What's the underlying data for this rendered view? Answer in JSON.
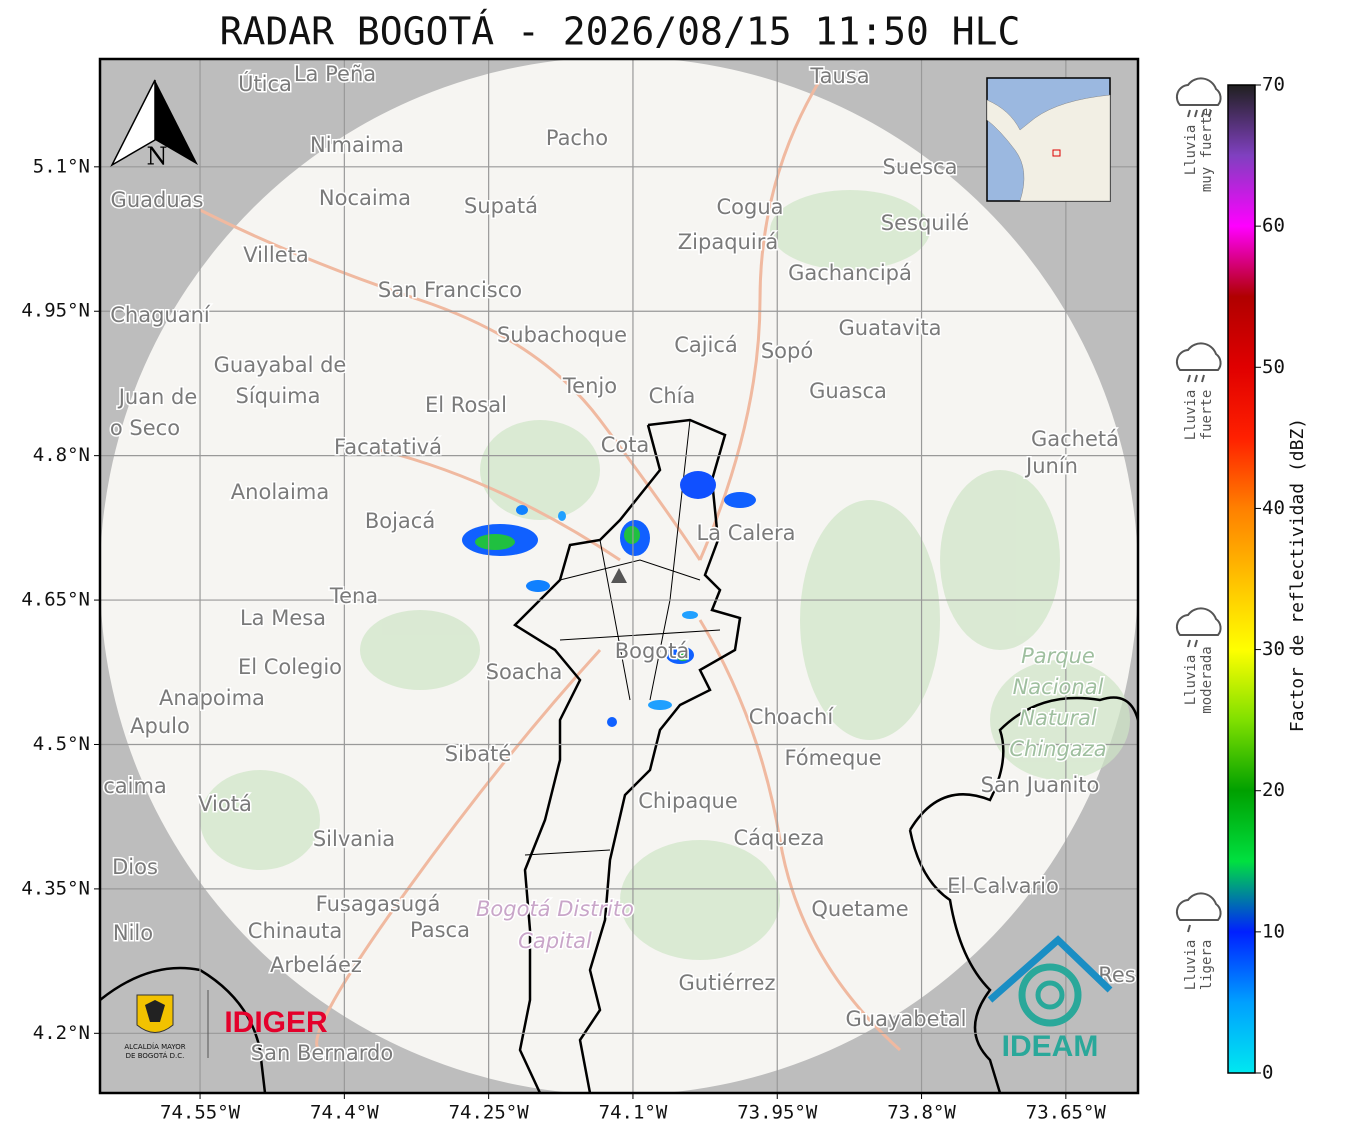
{
  "title": "RADAR BOGOTÁ - 2026/08/15 11:50 HLC",
  "map": {
    "xlim": [
      -74.654,
      -73.575
    ],
    "ylim": [
      4.138,
      5.212
    ],
    "xticks": [
      {
        "value": -74.55,
        "label": "74.55°W"
      },
      {
        "value": -74.4,
        "label": "74.4°W"
      },
      {
        "value": -74.25,
        "label": "74.25°W"
      },
      {
        "value": -74.1,
        "label": "74.1°W"
      },
      {
        "value": -73.95,
        "label": "73.95°W"
      },
      {
        "value": -73.8,
        "label": "73.8°W"
      },
      {
        "value": -73.65,
        "label": "73.65°W"
      }
    ],
    "yticks": [
      {
        "value": 5.1,
        "label": "5.1°N"
      },
      {
        "value": 4.95,
        "label": "4.95°N"
      },
      {
        "value": 4.8,
        "label": "4.8°N"
      },
      {
        "value": 4.65,
        "label": "4.65°N"
      },
      {
        "value": 4.5,
        "label": "4.5°N"
      },
      {
        "value": 4.35,
        "label": "4.35°N"
      },
      {
        "value": 4.2,
        "label": "4.2°N"
      }
    ],
    "grid": true,
    "north": "N",
    "places": [
      "La Peña",
      "Útica",
      "Tausa",
      "Nimaima",
      "Pacho",
      "Guaduas",
      "Nocaima",
      "Supatá",
      "Cogua",
      "Suesca",
      "Sesquilé",
      "Villeta",
      "Zipaquirá",
      "Gachancipá",
      "San Francisco",
      "Chaguaní",
      "Subachoque",
      "Cajicá",
      "Sopó",
      "Guatavita",
      "Guayabal de",
      "Síquima",
      "Juan de",
      "o Seco",
      "Tenjo",
      "Chía",
      "Guasca",
      "El Rosal",
      "Facatativá",
      "Cota",
      "Gachetá",
      "Junín",
      "Anolaima",
      "Bojacá",
      "La Calera",
      "Tena",
      "La Mesa",
      "Bogotá",
      "Soacha",
      "El Colegio",
      "Anapoima",
      "Apulo",
      "Choachí",
      "Sibaté",
      "Fómeque",
      "San Juanito",
      "caima",
      "Viotá",
      "Chipaque",
      "Silvania",
      "Cáqueza",
      "Dios",
      "El Calvario",
      "Fusagasugá",
      "Quetame",
      "Nilo",
      "Chinauta",
      "Pasca",
      "Arbeláez",
      "Gutiérrez",
      "Guayabetal",
      "San Bernardo",
      "Res"
    ],
    "park": [
      "Parque",
      "Nacional",
      "Natural",
      "Chingaza"
    ],
    "district": [
      "Bogotá Distrito",
      "Capital"
    ]
  },
  "colorbar": {
    "label": "Factor de reflectividad (dBZ)",
    "lim": [
      0,
      70
    ],
    "ticks": [
      0,
      10,
      20,
      30,
      40,
      50,
      60,
      70
    ],
    "colors": [
      "#00e8f0",
      "#00a0ff",
      "#0020ff",
      "#00e040",
      "#00a000",
      "#80e000",
      "#ffff00",
      "#ffc000",
      "#ff8000",
      "#ff2000",
      "#e00000",
      "#b00000",
      "#ff00ff",
      "#8040c0",
      "#202020"
    ]
  },
  "legend": [
    [
      "Lluvia",
      "muy fuerte"
    ],
    [
      "Lluvia",
      "fuerte"
    ],
    [
      "Lluvia",
      "moderada"
    ],
    [
      "Lluvia",
      "ligera"
    ]
  ],
  "logos": {
    "alcaldia": [
      "ALCALDÍA MAYOR",
      "DE BOGOTÁ D.C."
    ],
    "idiger": "IDIGER",
    "ideam": "IDEAM"
  }
}
